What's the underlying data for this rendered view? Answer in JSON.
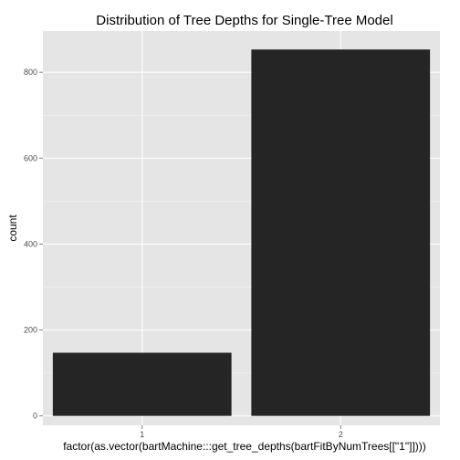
{
  "chart_data": {
    "type": "bar",
    "title": "Distribution of Tree Depths for Single-Tree Model",
    "xlabel": "factor(as.vector(bartMachine:::get_tree_depths(bartFitByNumTrees[[\"1\"]])))",
    "ylabel": "count",
    "categories": [
      "1",
      "2"
    ],
    "values": [
      147,
      853
    ],
    "ylim": [
      -22,
      896
    ],
    "yticks": [
      0,
      200,
      400,
      600,
      800
    ],
    "grid": true,
    "legend": "none",
    "colors": {
      "panel": "#e5e5e5",
      "grid_major": "#ffffff",
      "grid_minor": "#f2f2f2",
      "bar": "#252525",
      "tick": "#7f7f7f"
    }
  }
}
